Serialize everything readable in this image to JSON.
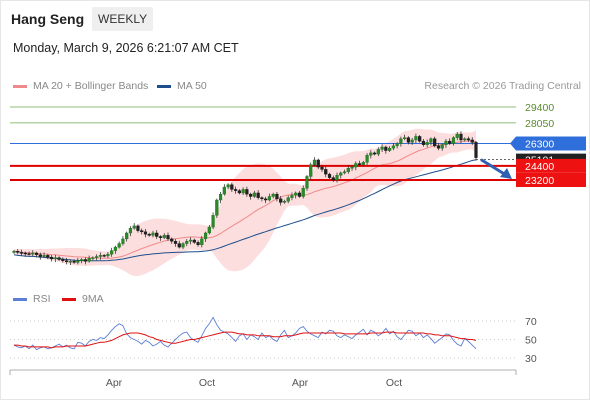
{
  "header": {
    "instrument": "Hang Seng",
    "period": "WEEKLY",
    "datetime": "Monday, March 9, 2026 6:21:07 AM CET",
    "credit": "Research © 2026 Trading Central"
  },
  "legend_main": [
    {
      "label": "MA 20 + Bollinger Bands",
      "color": "#f08a8a"
    },
    {
      "label": "MA 50",
      "color": "#1f4e8c"
    }
  ],
  "legend_rsi": [
    {
      "label": "RSI",
      "color": "#5b7fd6"
    },
    {
      "label": "9MA",
      "color": "#e01010"
    }
  ],
  "chart_data": [
    {
      "type": "candlestick",
      "x_labels": [
        "Apr",
        "Oct",
        "Apr",
        "Oct"
      ],
      "levels": [
        {
          "value": 29400,
          "label": "29400",
          "kind": "resistance",
          "color": "#6aa84f"
        },
        {
          "value": 28050,
          "label": "28050",
          "kind": "resistance",
          "color": "#6aa84f"
        },
        {
          "value": 26300,
          "label": "26300",
          "kind": "pivot",
          "color": "#2f6fdb"
        },
        {
          "value": 25101,
          "label": "25101",
          "kind": "last",
          "color": "#222222"
        },
        {
          "value": 24400,
          "label": "24400",
          "kind": "support",
          "color": "#dd0000"
        },
        {
          "value": 23200,
          "label": "23200",
          "kind": "support",
          "color": "#dd0000"
        }
      ],
      "ohlc_close": [
        17150,
        17050,
        17000,
        16950,
        16900,
        17000,
        16850,
        16700,
        16800,
        16650,
        16500,
        16600,
        16450,
        16350,
        16250,
        16300,
        16200,
        16350,
        16450,
        16300,
        16550,
        16600,
        16700,
        16800,
        16750,
        16900,
        17200,
        17500,
        17800,
        18200,
        18700,
        19100,
        19300,
        18900,
        18800,
        18600,
        18500,
        18700,
        18400,
        18300,
        18500,
        18200,
        18000,
        17800,
        17500,
        17800,
        18000,
        18100,
        17900,
        17700,
        18200,
        18700,
        19200,
        20200,
        21500,
        22000,
        22600,
        22800,
        22400,
        22300,
        22100,
        22400,
        22000,
        21800,
        22100,
        21700,
        21600,
        21500,
        21800,
        22000,
        21600,
        21300,
        21400,
        21700,
        21900,
        22100,
        21800,
        22500,
        23500,
        24500,
        24900,
        24300,
        24100,
        23700,
        23400,
        23200,
        23600,
        23800,
        23900,
        24200,
        24300,
        24600,
        24500,
        24700,
        25300,
        25500,
        25400,
        25800,
        26000,
        25700,
        25900,
        26100,
        26300,
        26700,
        26800,
        26400,
        26600,
        26900,
        26500,
        26200,
        26400,
        26700,
        26100,
        25900,
        26200,
        26500,
        26300,
        26800,
        27100,
        26600,
        26700,
        26600,
        26400,
        25101
      ],
      "ma20_note": "overlay",
      "ylim": [
        16000,
        29800
      ],
      "trend_projection": "downward arrow toward 23200"
    },
    {
      "type": "line",
      "panel": "RSI",
      "y_ticks": [
        70,
        50,
        30
      ],
      "ylim": [
        20,
        80
      ],
      "series": [
        {
          "name": "RSI",
          "values": [
            44,
            42,
            41,
            43,
            40,
            44,
            39,
            41,
            42,
            40,
            41,
            43,
            45,
            42,
            44,
            41,
            40,
            47,
            46,
            43,
            48,
            50,
            49,
            52,
            51,
            55,
            60,
            64,
            67,
            65,
            56,
            52,
            50,
            48,
            45,
            49,
            47,
            43,
            45,
            48,
            44,
            42,
            46,
            50,
            54,
            57,
            58,
            52,
            49,
            47,
            54,
            62,
            67,
            74,
            66,
            60,
            58,
            56,
            52,
            48,
            54,
            56,
            50,
            55,
            53,
            50,
            57,
            52,
            54,
            50,
            48,
            55,
            60,
            52,
            54,
            57,
            62,
            64,
            59,
            56,
            54,
            52,
            58,
            56,
            60,
            59,
            54,
            52,
            55,
            53,
            51,
            55,
            58,
            61,
            55,
            60,
            58,
            54,
            57,
            62,
            56,
            59,
            53,
            50,
            55,
            60,
            59,
            54,
            57,
            52,
            55,
            51,
            46,
            49,
            52,
            56,
            55,
            49,
            45,
            43,
            51,
            48,
            44,
            40
          ]
        },
        {
          "name": "9MA",
          "values": [
            44,
            44,
            43,
            43,
            42,
            42,
            42,
            42,
            42,
            42,
            41,
            42,
            42,
            42,
            43,
            43,
            43,
            43,
            43,
            43,
            44,
            45,
            46,
            47,
            47,
            48,
            49,
            51,
            53,
            55,
            56,
            57,
            57,
            57,
            56,
            55,
            53,
            52,
            50,
            49,
            48,
            47,
            46,
            46,
            47,
            48,
            49,
            50,
            50,
            51,
            52,
            53,
            54,
            55,
            56,
            57,
            58,
            58,
            58,
            57,
            56,
            56,
            55,
            55,
            55,
            54,
            54,
            54,
            54,
            53,
            53,
            53,
            54,
            54,
            54,
            55,
            56,
            57,
            57,
            57,
            57,
            57,
            57,
            57,
            57,
            57,
            57,
            57,
            56,
            56,
            56,
            56,
            56,
            56,
            56,
            57,
            57,
            57,
            57,
            58,
            58,
            58,
            57,
            57,
            57,
            57,
            57,
            57,
            57,
            57,
            56,
            56,
            55,
            55,
            54,
            54,
            54,
            53,
            52,
            51,
            51,
            50,
            50,
            49
          ]
        }
      ]
    }
  ]
}
